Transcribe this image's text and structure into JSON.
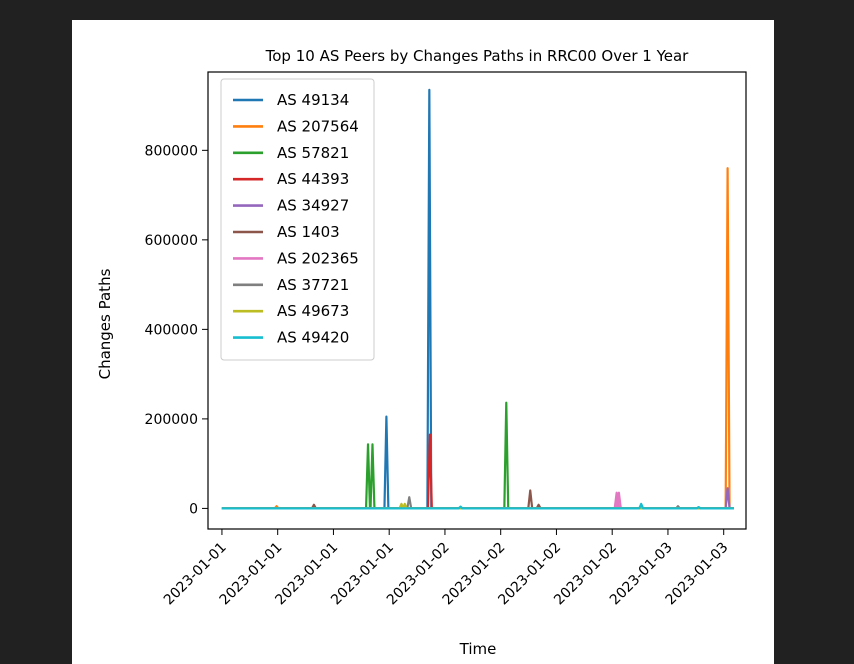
{
  "chart_data": {
    "type": "line",
    "title": "Top 10 AS Peers by Changes Paths in RRC00 Over 1 Year",
    "xlabel": "Time",
    "ylabel": "Changes Paths",
    "xlim": [
      -0.25,
      9.4
    ],
    "ylim": [
      -46000,
      975000
    ],
    "x_ticks": [
      {
        "pos": 0,
        "label": "2023-01-01"
      },
      {
        "pos": 1,
        "label": "2023-01-01"
      },
      {
        "pos": 2,
        "label": "2023-01-01"
      },
      {
        "pos": 3,
        "label": "2023-01-01"
      },
      {
        "pos": 4,
        "label": "2023-01-02"
      },
      {
        "pos": 5,
        "label": "2023-01-02"
      },
      {
        "pos": 6,
        "label": "2023-01-02"
      },
      {
        "pos": 7,
        "label": "2023-01-02"
      },
      {
        "pos": 8,
        "label": "2023-01-03"
      },
      {
        "pos": 9,
        "label": "2023-01-03"
      }
    ],
    "y_ticks": [
      {
        "value": 0,
        "label": "0"
      },
      {
        "value": 200000,
        "label": "200000"
      },
      {
        "value": 400000,
        "label": "400000"
      },
      {
        "value": 600000,
        "label": "600000"
      },
      {
        "value": 800000,
        "label": "800000"
      }
    ],
    "legend_position": "upper-left",
    "series": [
      {
        "name": "AS 49134",
        "color": "#1f77b4",
        "spikes": [
          [
            2.95,
            205000
          ],
          [
            3.72,
            935000
          ]
        ]
      },
      {
        "name": "AS 207564",
        "color": "#ff7f0e",
        "spikes": [
          [
            0.98,
            5000
          ],
          [
            9.07,
            760000
          ]
        ]
      },
      {
        "name": "AS 57821",
        "color": "#2ca02c",
        "spikes": [
          [
            2.62,
            143000
          ],
          [
            2.7,
            143000
          ],
          [
            5.1,
            236000
          ]
        ]
      },
      {
        "name": "AS 44393",
        "color": "#d62728",
        "spikes": [
          [
            3.73,
            165000
          ]
        ]
      },
      {
        "name": "AS 34927",
        "color": "#9467bd",
        "spikes": [
          [
            9.07,
            45000
          ]
        ]
      },
      {
        "name": "AS 1403",
        "color": "#8c564b",
        "spikes": [
          [
            1.65,
            8000
          ],
          [
            5.53,
            40000
          ],
          [
            5.68,
            8000
          ]
        ]
      },
      {
        "name": "AS 202365",
        "color": "#e377c2",
        "spikes": [
          [
            7.08,
            35000
          ],
          [
            7.12,
            35000
          ]
        ]
      },
      {
        "name": "AS 37721",
        "color": "#7f7f7f",
        "spikes": [
          [
            3.36,
            25000
          ],
          [
            8.18,
            5000
          ]
        ]
      },
      {
        "name": "AS 49673",
        "color": "#bcbd22",
        "spikes": [
          [
            3.22,
            10000
          ],
          [
            3.28,
            10000
          ]
        ]
      },
      {
        "name": "AS 49420",
        "color": "#17becf",
        "spikes": [
          [
            4.28,
            4000
          ],
          [
            7.52,
            10000
          ],
          [
            8.55,
            3000
          ]
        ]
      }
    ]
  }
}
